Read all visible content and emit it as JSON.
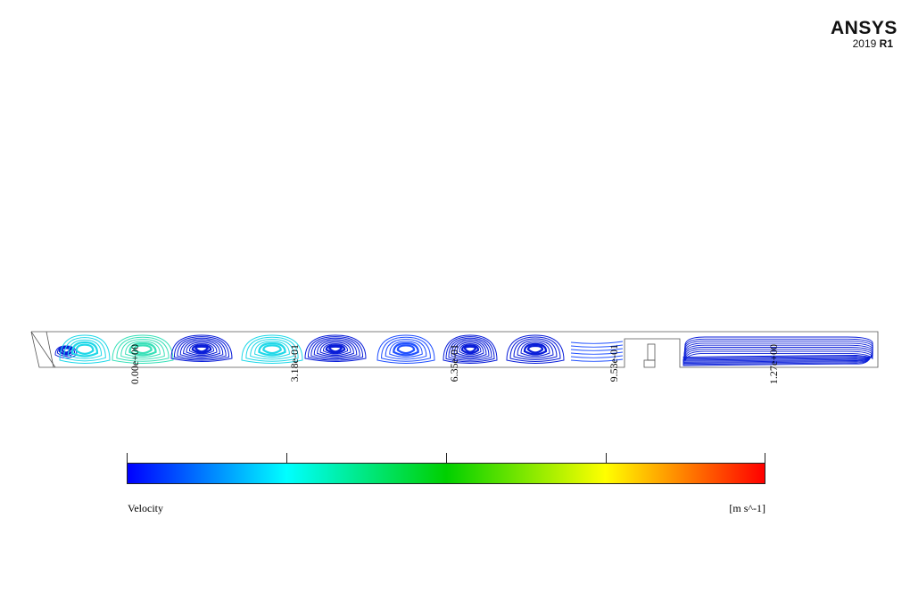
{
  "logo": {
    "name": "ANSYS",
    "version": "2019",
    "release": "R1"
  },
  "legend": {
    "variable": "Velocity",
    "units": "[m s^-1]",
    "ticks": [
      "0.00e+00",
      "3.18e-01",
      "6.35e-01",
      "9.53e-01",
      "1.27e+00"
    ],
    "colormap": [
      "#0000ff",
      "#00ffff",
      "#00d000",
      "#ffff00",
      "#ff0000"
    ]
  },
  "colors": {
    "streamline_dark": "#0a1ed8",
    "streamline_mid": "#2050ff",
    "streamline_cyan": "#20d8e8",
    "streamline_teal": "#38e0b8",
    "outline": "#555555"
  }
}
